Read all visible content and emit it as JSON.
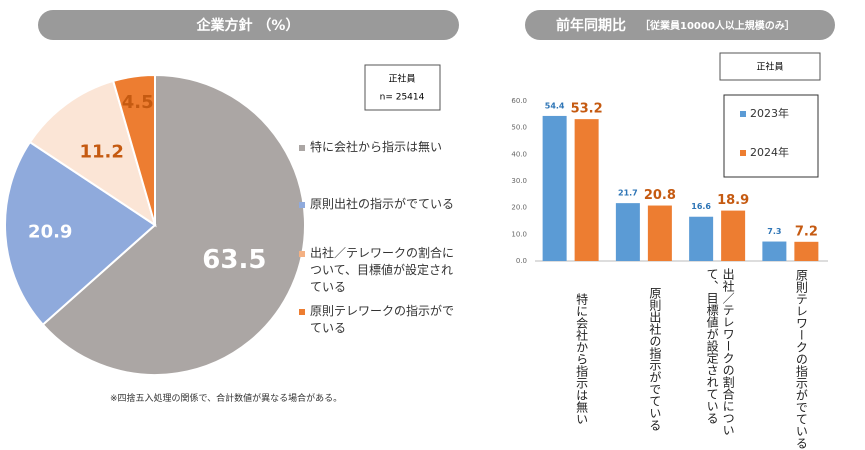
{
  "chart_data": [
    {
      "type": "pie",
      "title": "企業方針 （%）",
      "categories": [
        "特に会社から指示は無い",
        "原則出社の指示がでている",
        "出社／テレワークの割合について、目標値が設定されている",
        "原則テレワークの指示がでている"
      ],
      "values": [
        63.5,
        20.9,
        11.2,
        4.5
      ],
      "colors": [
        "#aba6a4",
        "#8faadc",
        "#fbe5d6",
        "#ed7d31"
      ],
      "box_lines": [
        "正社員",
        "n= 25414"
      ],
      "note": "※四捨五入処理の関係で、合計数値が異なる場合がある。"
    },
    {
      "type": "bar",
      "title": "前年同期比",
      "subtitle": "［従業員10000人以上規模のみ］",
      "box_label": "正社員",
      "categories": [
        "特に会社から指示は無い",
        "原則出社の指示がでている",
        "出社／テレワークの割合について、目標値が設定されている",
        "原則テレワークの指示がでている"
      ],
      "series": [
        {
          "name": "2023年",
          "color": "#5b9bd5",
          "values": [
            54.4,
            21.7,
            16.6,
            7.3
          ]
        },
        {
          "name": "2024年",
          "color": "#ed7d31",
          "values": [
            53.2,
            20.8,
            18.9,
            7.2
          ]
        }
      ],
      "ylim": [
        0,
        60
      ],
      "yticks": [
        {
          "value": 0,
          "label": "0.0"
        },
        {
          "value": 10,
          "label": "10.0"
        },
        {
          "value": 20,
          "label": "20.0"
        },
        {
          "value": 30,
          "label": "30.0"
        },
        {
          "value": 40,
          "label": "40.0"
        },
        {
          "value": 50,
          "label": "50.0"
        },
        {
          "value": 60,
          "label": "60.0"
        }
      ],
      "grid": false,
      "legend": "top-right"
    }
  ]
}
